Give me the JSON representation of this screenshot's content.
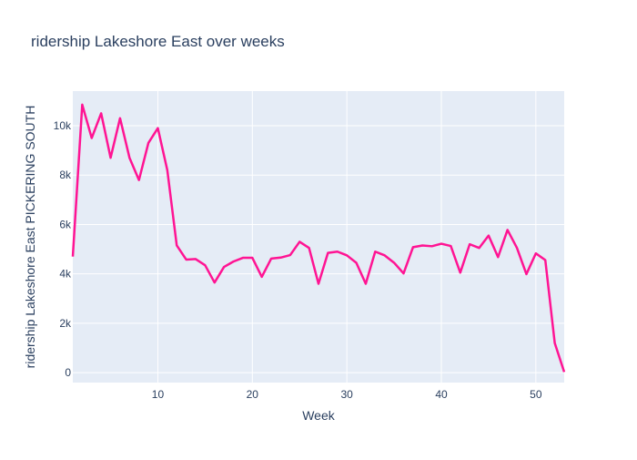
{
  "chart_data": {
    "type": "line",
    "title": "ridership Lakeshore East over weeks",
    "xlabel": "Week",
    "ylabel": "ridership Lakeshore East PICKERING SOUTH",
    "xlim": [
      1,
      53
    ],
    "ylim": [
      -400,
      11400
    ],
    "x_ticks": [
      10,
      20,
      30,
      40,
      50
    ],
    "y_ticks": [
      0,
      2000,
      4000,
      6000,
      8000,
      10000
    ],
    "y_tick_labels": [
      "0",
      "2k",
      "4k",
      "6k",
      "8k",
      "10k"
    ],
    "grid": true,
    "series": [
      {
        "color": "#ff1493",
        "x": [
          1,
          2,
          3,
          4,
          5,
          6,
          7,
          8,
          9,
          10,
          11,
          12,
          13,
          14,
          15,
          16,
          17,
          18,
          19,
          20,
          21,
          22,
          23,
          24,
          25,
          26,
          27,
          28,
          29,
          30,
          31,
          32,
          33,
          34,
          35,
          36,
          37,
          38,
          39,
          40,
          41,
          42,
          43,
          44,
          45,
          46,
          47,
          48,
          49,
          50,
          51,
          52,
          53
        ],
        "y": [
          4700,
          10850,
          9500,
          10500,
          8700,
          10300,
          8700,
          7800,
          9300,
          9900,
          8200,
          5150,
          4580,
          4600,
          4350,
          3650,
          4280,
          4500,
          4650,
          4650,
          3880,
          4620,
          4660,
          4760,
          5300,
          5050,
          3600,
          4850,
          4900,
          4750,
          4450,
          3600,
          4900,
          4750,
          4450,
          4020,
          5080,
          5150,
          5120,
          5220,
          5130,
          4050,
          5200,
          5050,
          5550,
          4680,
          5780,
          5050,
          3990,
          4830,
          4560,
          1200,
          30
        ]
      }
    ]
  },
  "colors": {
    "plot_background": "#e5ecf6",
    "grid": "#ffffff",
    "axis_text": "#2a3f5f"
  }
}
